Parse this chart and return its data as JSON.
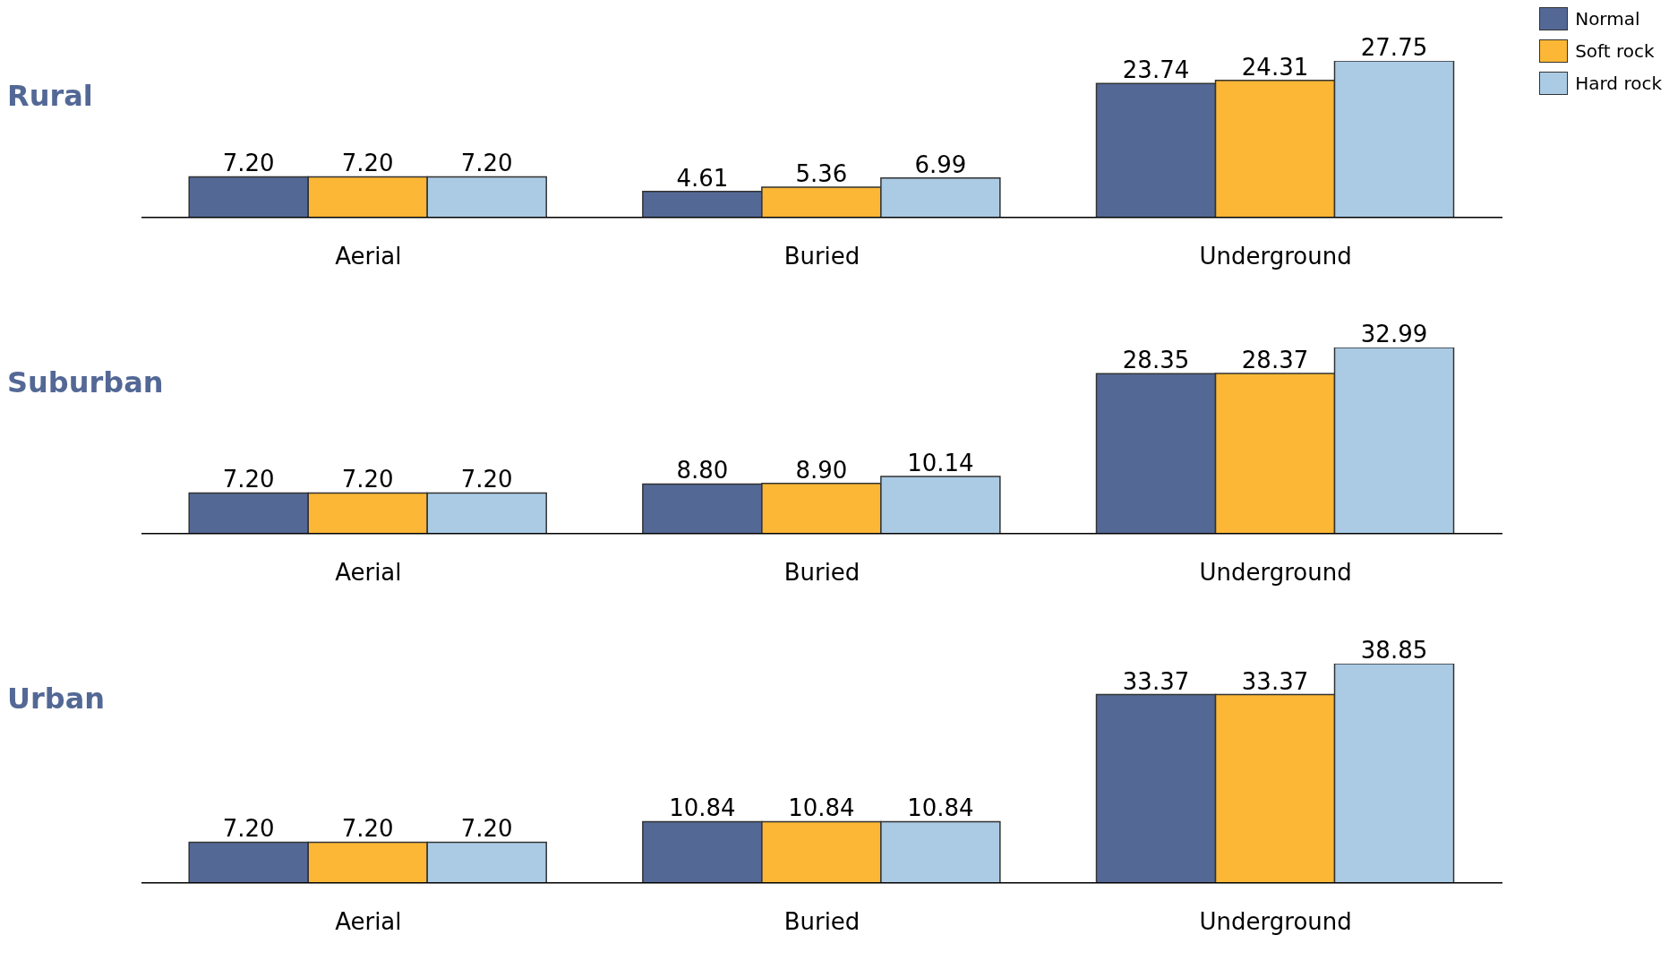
{
  "chart_data": [
    {
      "type": "bar",
      "title": "Rural",
      "categories": [
        "Aerial",
        "Buried",
        "Underground"
      ],
      "legend": "top right",
      "series": [
        {
          "name": "Normal",
          "color": "#536895",
          "values": [
            7.2,
            4.61,
            23.74
          ],
          "value_labels": [
            "7.20",
            "4.61",
            "23.74"
          ]
        },
        {
          "name": "Soft rock",
          "color": "#fbb735",
          "values": [
            7.2,
            5.36,
            24.31
          ],
          "value_labels": [
            "7.20",
            "5.36",
            "24.31"
          ]
        },
        {
          "name": "Hard rock",
          "color": "#abcbe5",
          "values": [
            7.2,
            6.99,
            27.75
          ],
          "value_labels": [
            "7.20",
            "6.99",
            "27.75"
          ]
        }
      ]
    },
    {
      "type": "bar",
      "title": "Suburban",
      "categories": [
        "Aerial",
        "Buried",
        "Underground"
      ],
      "series": [
        {
          "color": "#536895",
          "values": [
            7.2,
            8.8,
            28.35
          ],
          "value_labels": [
            "7.20",
            "8.80",
            "28.35"
          ]
        },
        {
          "color": "#fbb735",
          "values": [
            7.2,
            8.9,
            28.37
          ],
          "value_labels": [
            "7.20",
            "8.90",
            "28.37"
          ]
        },
        {
          "color": "#abcbe5",
          "values": [
            7.2,
            10.14,
            32.99
          ],
          "value_labels": [
            "7.20",
            "10.14",
            "32.99"
          ]
        }
      ]
    },
    {
      "type": "bar",
      "title": "Urban",
      "categories": [
        "Aerial",
        "Buried",
        "Underground"
      ],
      "series": [
        {
          "color": "#536895",
          "values": [
            7.2,
            10.84,
            33.37
          ],
          "value_labels": [
            "7.20",
            "10.84",
            "33.37"
          ]
        },
        {
          "color": "#fbb735",
          "values": [
            7.2,
            10.84,
            33.37
          ],
          "value_labels": [
            "7.20",
            "10.84",
            "33.37"
          ]
        },
        {
          "color": "#abcbe5",
          "values": [
            7.2,
            10.84,
            38.85
          ],
          "value_labels": [
            "7.20",
            "10.84",
            "38.85"
          ]
        }
      ]
    }
  ]
}
